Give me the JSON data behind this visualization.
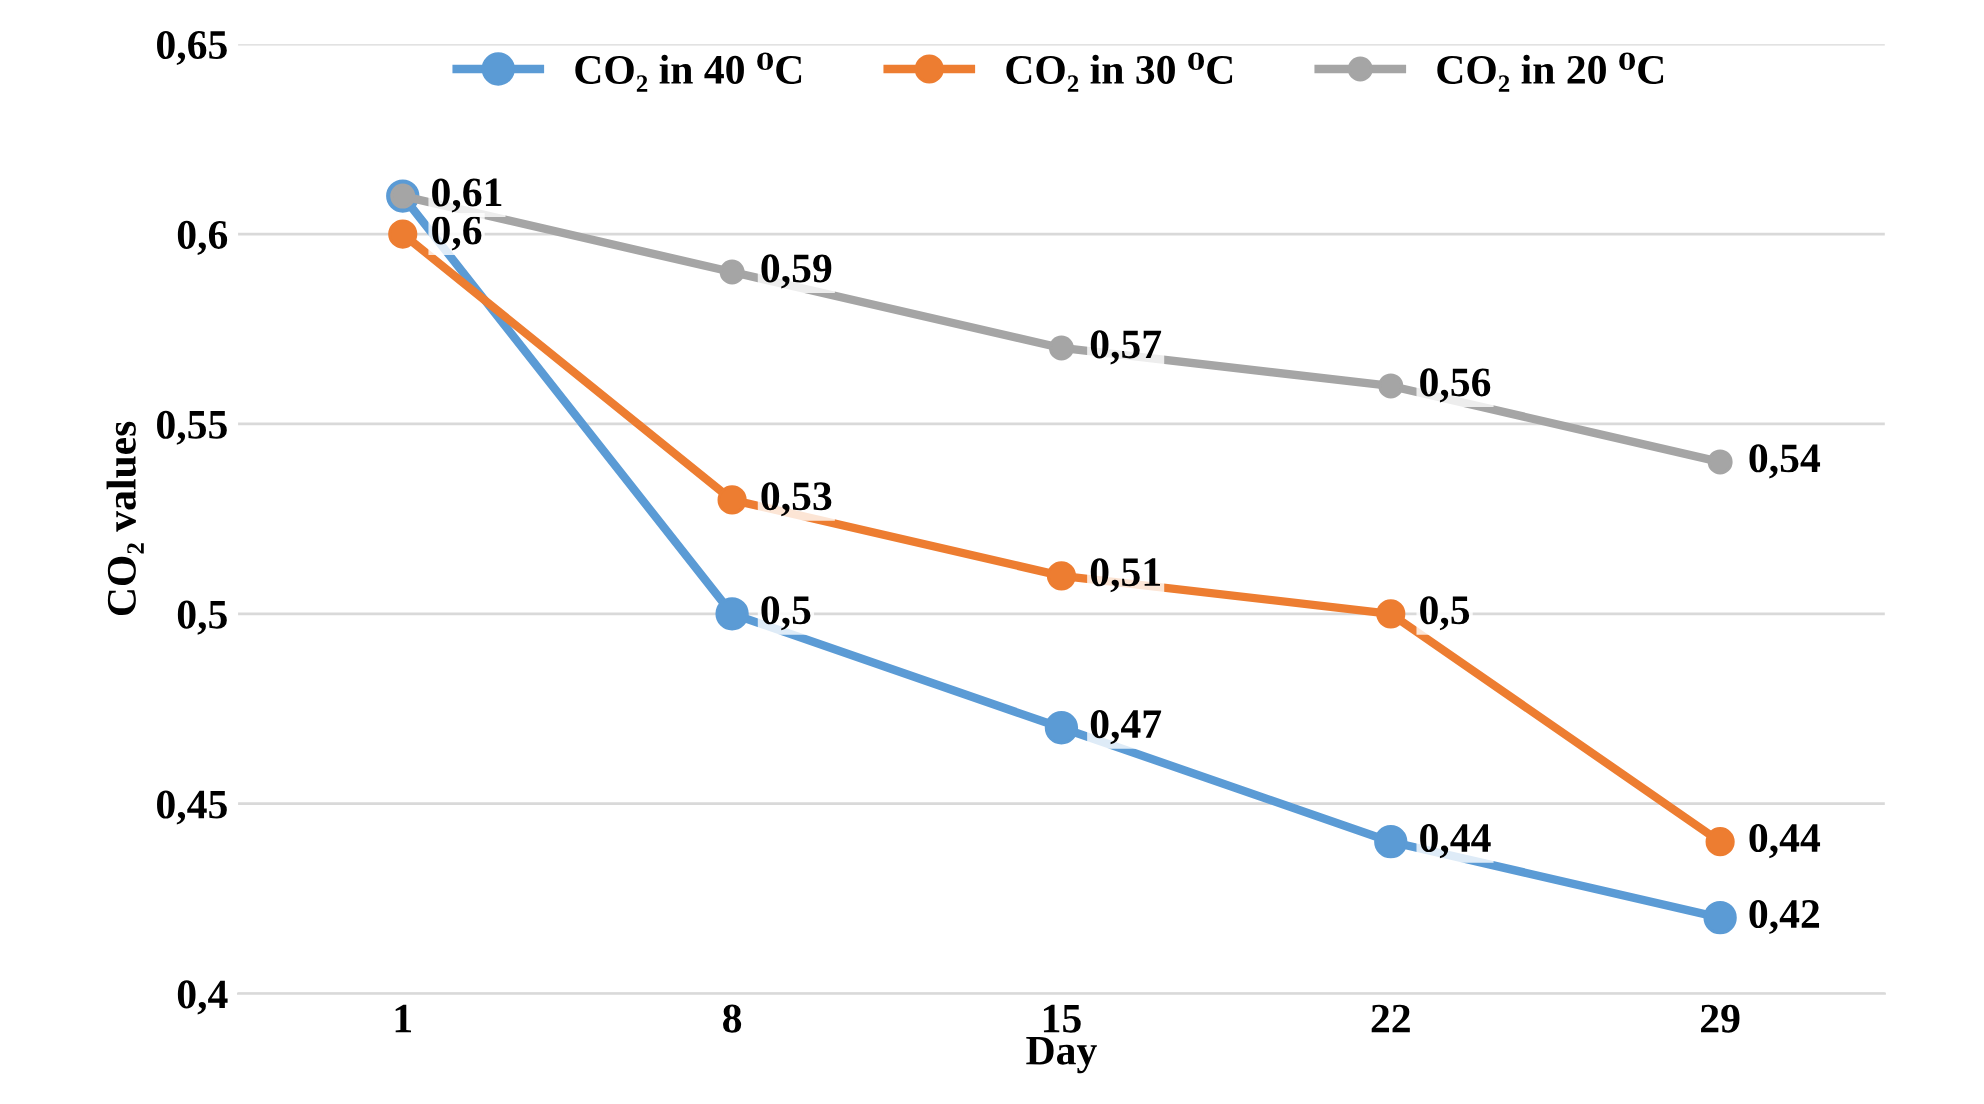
{
  "chart_data": {
    "type": "line",
    "xlabel": "Day",
    "ylabel": "CO₂ values",
    "categories": [
      "1",
      "8",
      "15",
      "22",
      "29"
    ],
    "series": [
      {
        "name": "CO₂ in 40 ⁰C",
        "color": "#5b9bd5",
        "values": [
          0.61,
          0.5,
          0.47,
          0.44,
          0.42
        ],
        "value_labels": [
          null,
          "0,5",
          "0,47",
          "0,44",
          "0,42"
        ]
      },
      {
        "name": "CO₂ in 30 ⁰C",
        "color": "#ed7d31",
        "values": [
          0.6,
          0.53,
          0.51,
          0.5,
          0.44
        ],
        "value_labels": [
          "0,6",
          "0,53",
          "0,51",
          "0,5",
          "0,44"
        ]
      },
      {
        "name": "CO₂ in 20 ⁰C",
        "color": "#a5a5a5",
        "values": [
          0.61,
          0.59,
          0.57,
          0.56,
          0.54
        ],
        "value_labels": [
          "0,61",
          "0,59",
          "0,57",
          "0,56",
          "0,54"
        ]
      }
    ],
    "ylim": [
      0.4,
      0.65
    ],
    "yticks": [
      {
        "value": 0.4,
        "label": "0,4"
      },
      {
        "value": 0.45,
        "label": "0,45"
      },
      {
        "value": 0.5,
        "label": "0,5"
      },
      {
        "value": 0.55,
        "label": "0,55"
      },
      {
        "value": 0.6,
        "label": "0,6"
      },
      {
        "value": 0.65,
        "label": "0,65"
      }
    ],
    "grid": "y",
    "legend": "top",
    "marker": "circle",
    "line_style": "solid"
  }
}
